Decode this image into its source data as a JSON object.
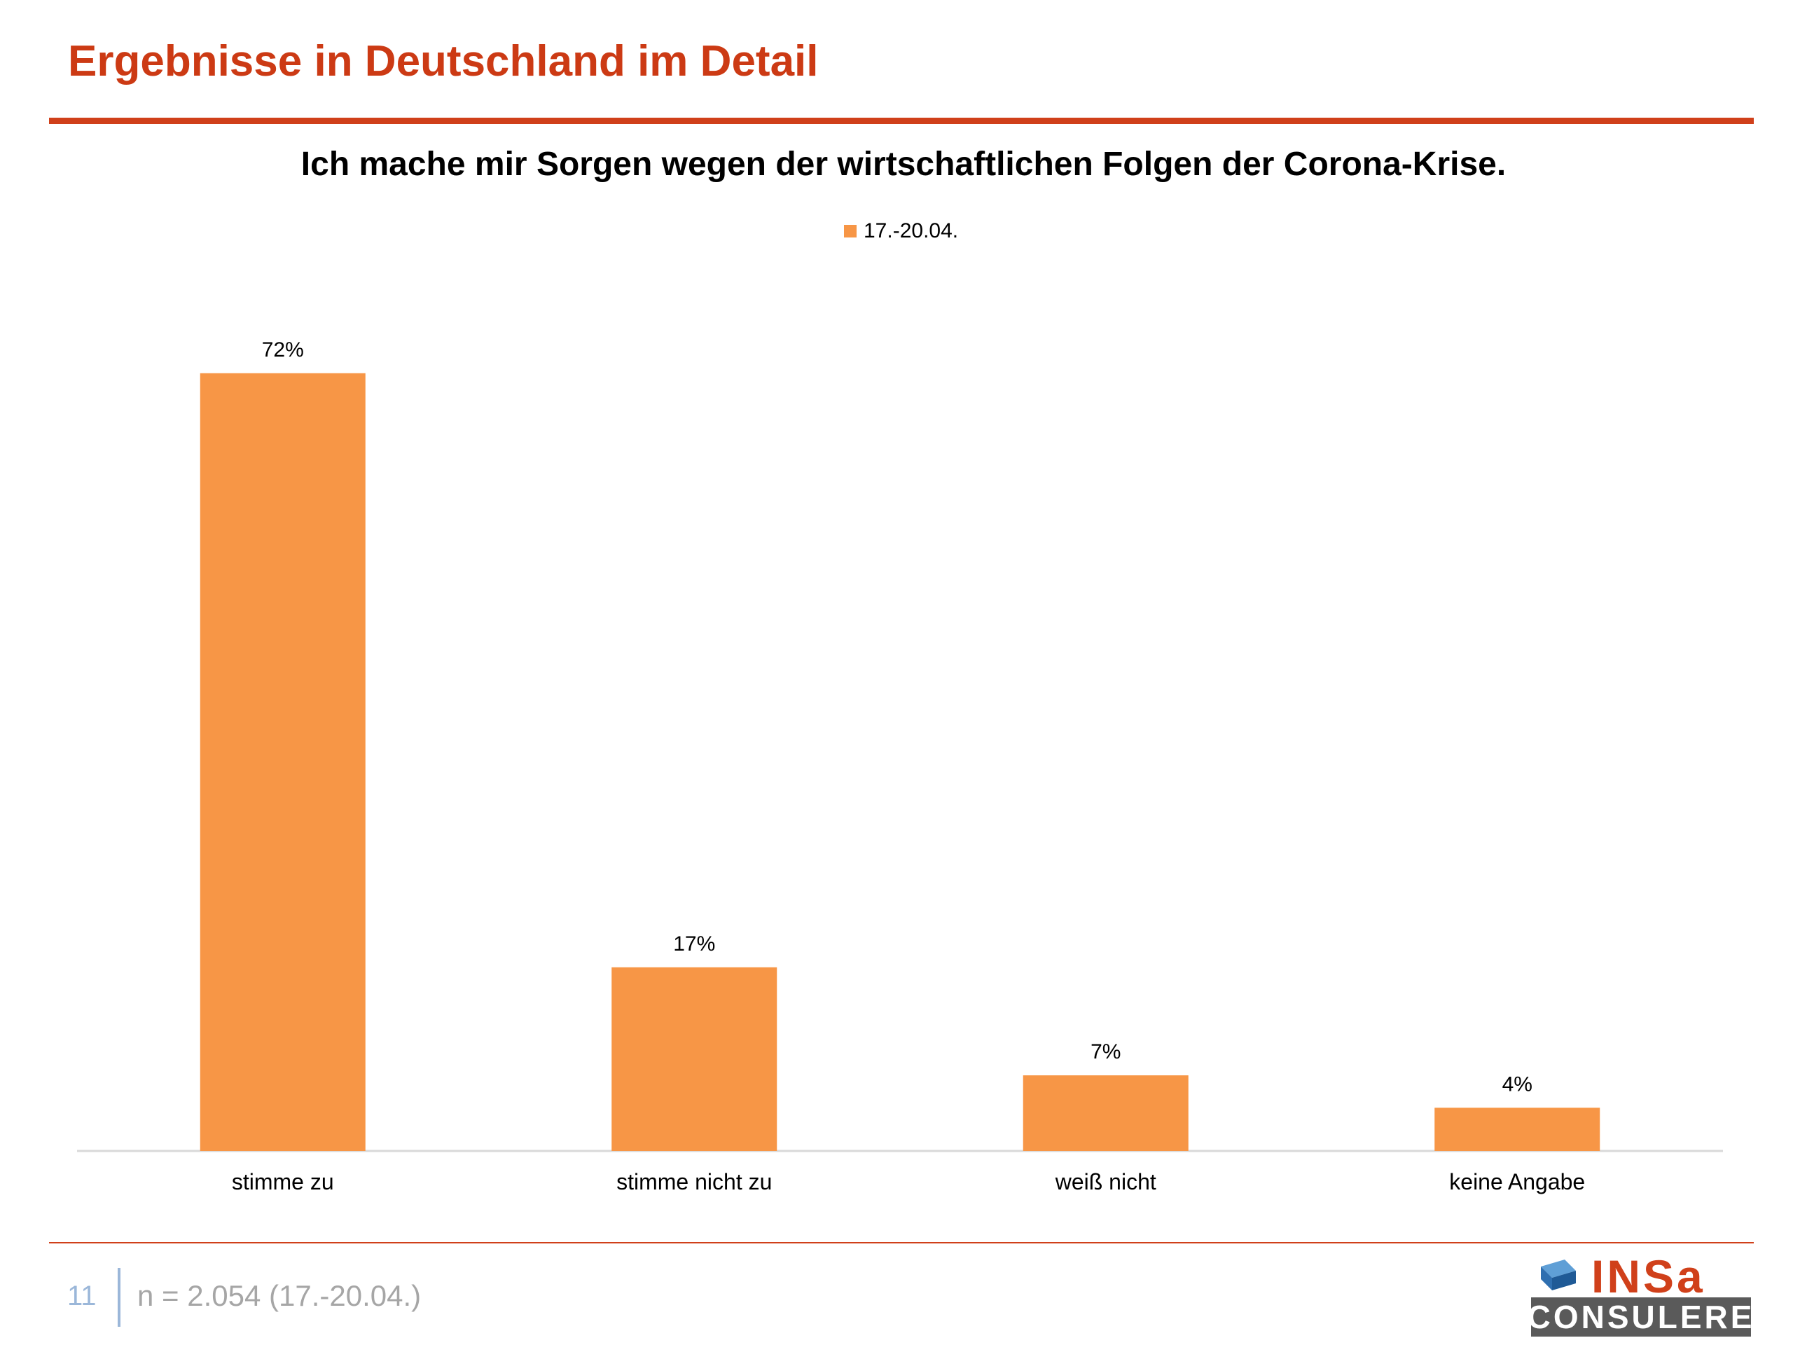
{
  "header": {
    "title": "Ergebnisse in Deutschland im Detail"
  },
  "chart_data": {
    "type": "bar",
    "title": "Ich mache mir Sorgen wegen der wirtschaftlichen Folgen der Corona-Krise.",
    "categories": [
      "stimme zu",
      "stimme nicht zu",
      "weiß nicht",
      "keine Angabe"
    ],
    "series": [
      {
        "name": "17.-20.04.",
        "values": [
          72,
          17,
          7,
          4
        ],
        "labels": [
          "72%",
          "17%",
          "7%",
          "4%"
        ]
      }
    ],
    "ylim": [
      0,
      80
    ],
    "xlabel": "",
    "ylabel": "",
    "grid": false,
    "legend": "top-center",
    "bar_color": "#f79646",
    "axis_color": "#d9d9d9"
  },
  "footer": {
    "page_number": "11",
    "note": "n = 2.054 (17.-20.04.)"
  },
  "logo": {
    "top_text": "INSa",
    "bottom_text": "CONSULERE",
    "icon": "insa-cube-icon"
  }
}
